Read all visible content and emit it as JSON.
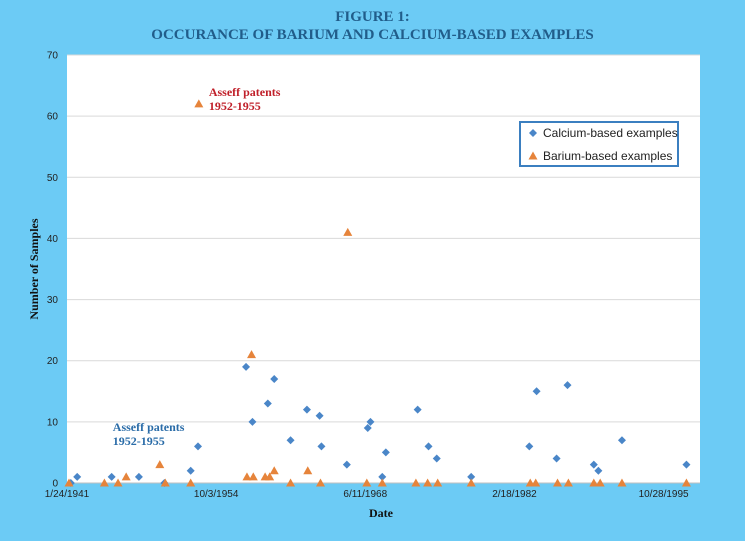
{
  "figure": {
    "title_line1": "FIGURE 1:",
    "title_line2": "OCCURANCE OF BARIUM AND CALCIUM-BASED EXAMPLES"
  },
  "colors": {
    "background": "#6ccbf5",
    "plot_area": "#ffffff",
    "gridline": "#d9d9d9",
    "calcium": "#4a86c8",
    "barium": "#e6843b",
    "title": "#215d8a",
    "annotation_red": "#c0202a",
    "annotation_blue": "#2a6ca8",
    "legend_border": "#3b7fc0"
  },
  "chart_data": {
    "type": "scatter",
    "xlabel": "Date",
    "ylabel": "Number of Samples",
    "ylim": [
      0,
      70
    ],
    "yticks": [
      0,
      10,
      20,
      30,
      40,
      50,
      60,
      70
    ],
    "xlim": [
      "1941-01-24",
      "1999-03-01"
    ],
    "xticks": [
      "1941-01-24",
      "1954-10-03",
      "1968-06-11",
      "1982-02-18",
      "1995-10-28"
    ],
    "xtick_labels": [
      "1/24/1941",
      "10/3/1954",
      "6/11/1968",
      "2/18/1982",
      "10/28/1995"
    ],
    "grid": "horizontal",
    "legend_position": "top-right",
    "legend": [
      "Calcium-based examples",
      "Barium-based examples"
    ],
    "series": [
      {
        "name": "Calcium-based examples",
        "marker": "diamond",
        "points": [
          {
            "x": "1941-06-01",
            "y": 0
          },
          {
            "x": "1942-01-01",
            "y": 1
          },
          {
            "x": "1945-03-01",
            "y": 1
          },
          {
            "x": "1947-09-01",
            "y": 1
          },
          {
            "x": "1950-01-01",
            "y": 0
          },
          {
            "x": "1952-06-01",
            "y": 2
          },
          {
            "x": "1953-02-01",
            "y": 6
          },
          {
            "x": "1957-07-01",
            "y": 19
          },
          {
            "x": "1958-02-01",
            "y": 10
          },
          {
            "x": "1959-07-01",
            "y": 13
          },
          {
            "x": "1960-02-01",
            "y": 17
          },
          {
            "x": "1961-08-01",
            "y": 7
          },
          {
            "x": "1963-02-01",
            "y": 12
          },
          {
            "x": "1964-04-01",
            "y": 11
          },
          {
            "x": "1964-06-01",
            "y": 6
          },
          {
            "x": "1966-10-01",
            "y": 3
          },
          {
            "x": "1968-09-01",
            "y": 9
          },
          {
            "x": "1968-12-01",
            "y": 10
          },
          {
            "x": "1970-01-01",
            "y": 1
          },
          {
            "x": "1970-05-01",
            "y": 5
          },
          {
            "x": "1973-04-01",
            "y": 12
          },
          {
            "x": "1974-04-01",
            "y": 6
          },
          {
            "x": "1975-01-01",
            "y": 4
          },
          {
            "x": "1978-03-01",
            "y": 1
          },
          {
            "x": "1983-07-01",
            "y": 6
          },
          {
            "x": "1984-03-01",
            "y": 15
          },
          {
            "x": "1986-01-01",
            "y": 4
          },
          {
            "x": "1987-01-01",
            "y": 16
          },
          {
            "x": "1989-06-01",
            "y": 3
          },
          {
            "x": "1989-11-01",
            "y": 2
          },
          {
            "x": "1992-01-01",
            "y": 7
          },
          {
            "x": "1997-12-01",
            "y": 3
          }
        ]
      },
      {
        "name": "Barium-based examples",
        "marker": "triangle",
        "points": [
          {
            "x": "1941-04-01",
            "y": 0
          },
          {
            "x": "1944-07-01",
            "y": 0
          },
          {
            "x": "1945-10-01",
            "y": 0
          },
          {
            "x": "1946-07-01",
            "y": 1
          },
          {
            "x": "1949-08-01",
            "y": 3
          },
          {
            "x": "1950-02-01",
            "y": 0
          },
          {
            "x": "1952-06-01",
            "y": 0
          },
          {
            "x": "1953-03-01",
            "y": 62
          },
          {
            "x": "1957-08-01",
            "y": 1
          },
          {
            "x": "1958-01-01",
            "y": 21
          },
          {
            "x": "1958-03-01",
            "y": 1
          },
          {
            "x": "1959-04-01",
            "y": 1
          },
          {
            "x": "1959-09-01",
            "y": 1
          },
          {
            "x": "1960-02-01",
            "y": 2
          },
          {
            "x": "1961-08-01",
            "y": 0
          },
          {
            "x": "1963-03-01",
            "y": 2
          },
          {
            "x": "1964-05-01",
            "y": 0
          },
          {
            "x": "1966-11-01",
            "y": 41
          },
          {
            "x": "1968-08-01",
            "y": 0
          },
          {
            "x": "1970-01-01",
            "y": 0
          },
          {
            "x": "1973-02-01",
            "y": 0
          },
          {
            "x": "1974-03-01",
            "y": 0
          },
          {
            "x": "1975-02-01",
            "y": 0
          },
          {
            "x": "1978-03-01",
            "y": 0
          },
          {
            "x": "1983-08-01",
            "y": 0
          },
          {
            "x": "1984-02-01",
            "y": 0
          },
          {
            "x": "1986-02-01",
            "y": 0
          },
          {
            "x": "1987-02-01",
            "y": 0
          },
          {
            "x": "1989-06-01",
            "y": 0
          },
          {
            "x": "1990-01-01",
            "y": 0
          },
          {
            "x": "1992-01-01",
            "y": 0
          },
          {
            "x": "1997-12-01",
            "y": 0
          }
        ]
      }
    ],
    "annotations": [
      {
        "lines": [
          "Asseff patents",
          "1952-1955"
        ],
        "x": "1953-03-01",
        "y": 62,
        "color": "annotation_red"
      },
      {
        "lines": [
          "Asseff patents",
          "1952-1955"
        ],
        "x": "1946-01-01",
        "y": 8,
        "color": "annotation_blue"
      }
    ]
  }
}
